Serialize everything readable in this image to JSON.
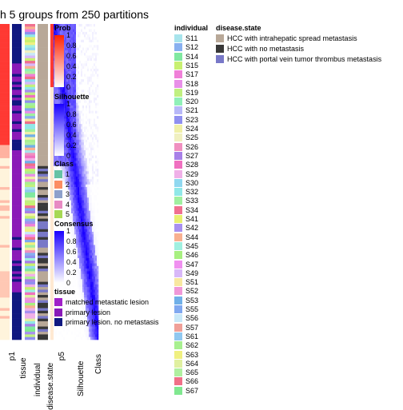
{
  "title": "h 5 groups from 250 partitions",
  "chart_data": {
    "type": "heatmap",
    "column_labels": [
      "p1",
      "tissue",
      "individual",
      "disease.state",
      "p5",
      "Silhouette",
      "Class"
    ],
    "legends": {
      "prob": {
        "title": "Prob",
        "ticks": [
          "1",
          "0.8",
          "0.6",
          "0.4",
          "0.2",
          "0"
        ],
        "colors": [
          "#ff2200",
          "#ffffff"
        ]
      },
      "silhouette": {
        "title": "Silhouette",
        "ticks": [
          "1",
          "0.8",
          "0.6",
          "0.4",
          "0.2",
          "0"
        ],
        "colors": [
          "#1a00ff",
          "#ffffff"
        ]
      },
      "class": {
        "title": "Class",
        "items": [
          {
            "label": "1",
            "color": "#66c2a5"
          },
          {
            "label": "2",
            "color": "#fc8d62"
          },
          {
            "label": "3",
            "color": "#8da0cb"
          },
          {
            "label": "4",
            "color": "#e78ac3"
          },
          {
            "label": "5",
            "color": "#a6d854"
          }
        ]
      },
      "consensus": {
        "title": "Consensus",
        "ticks": [
          "1",
          "0.8",
          "0.6",
          "0.4",
          "0.2",
          "0"
        ],
        "colors": [
          "#1a00ff",
          "#ffffff"
        ]
      },
      "tissue": {
        "title": "tissue",
        "items": [
          {
            "label": "matched metastatic lesion",
            "color": "#a020c8"
          },
          {
            "label": "primary lesion",
            "color": "#8a1ab8"
          },
          {
            "label": "primary lesion. no metastasis",
            "color": "#101880"
          }
        ]
      },
      "individual": {
        "title": "individual",
        "items": [
          {
            "label": "S11",
            "color": "#a8e4ec"
          },
          {
            "label": "S12",
            "color": "#88b0f0"
          },
          {
            "label": "S14",
            "color": "#80e8a0"
          },
          {
            "label": "S15",
            "color": "#c8f070"
          },
          {
            "label": "S17",
            "color": "#f080d8"
          },
          {
            "label": "S18",
            "color": "#e890e8"
          },
          {
            "label": "S19",
            "color": "#c0f080"
          },
          {
            "label": "S20",
            "color": "#90f0b8"
          },
          {
            "label": "S21",
            "color": "#b8b8f8"
          },
          {
            "label": "S23",
            "color": "#9090f0"
          },
          {
            "label": "S24",
            "color": "#f0f0a8"
          },
          {
            "label": "S25",
            "color": "#f0f0c0"
          },
          {
            "label": "S26",
            "color": "#f090c0"
          },
          {
            "label": "S27",
            "color": "#a880e8"
          },
          {
            "label": "S28",
            "color": "#f070c0"
          },
          {
            "label": "S29",
            "color": "#f0b0e8"
          },
          {
            "label": "S30",
            "color": "#90d8f0"
          },
          {
            "label": "S32",
            "color": "#90e8e8"
          },
          {
            "label": "S33",
            "color": "#a0f0a0"
          },
          {
            "label": "S34",
            "color": "#f07090"
          },
          {
            "label": "S41",
            "color": "#e8f070"
          },
          {
            "label": "S42",
            "color": "#a890f0"
          },
          {
            "label": "S44",
            "color": "#f8b090"
          },
          {
            "label": "S45",
            "color": "#a0f0e0"
          },
          {
            "label": "S46",
            "color": "#a8f080"
          },
          {
            "label": "S47",
            "color": "#f090f0"
          },
          {
            "label": "S49",
            "color": "#d8b8f8"
          },
          {
            "label": "S51",
            "color": "#f8e8a0"
          },
          {
            "label": "S52",
            "color": "#f098d8"
          },
          {
            "label": "S53",
            "color": "#70b0e8"
          },
          {
            "label": "S55",
            "color": "#80a8f0"
          },
          {
            "label": "S56",
            "color": "#c8e8f8"
          },
          {
            "label": "S57",
            "color": "#f0a098"
          },
          {
            "label": "S61",
            "color": "#90c8f0"
          },
          {
            "label": "S62",
            "color": "#a8f090"
          },
          {
            "label": "S63",
            "color": "#f0f080"
          },
          {
            "label": "S64",
            "color": "#e0f0a0"
          },
          {
            "label": "S65",
            "color": "#b0f0a0"
          },
          {
            "label": "S66",
            "color": "#f07088"
          },
          {
            "label": "S67",
            "color": "#80e890"
          }
        ]
      },
      "disease_state": {
        "title": "disease.state",
        "items": [
          {
            "label": "HCC with intrahepatic spread metastasis",
            "color": "#b8a898"
          },
          {
            "label": "HCC with no metastasis",
            "color": "#383838"
          },
          {
            "label": "HCC with portal vein tumor thrombus metastasis",
            "color": "#7878c8"
          }
        ]
      }
    }
  }
}
